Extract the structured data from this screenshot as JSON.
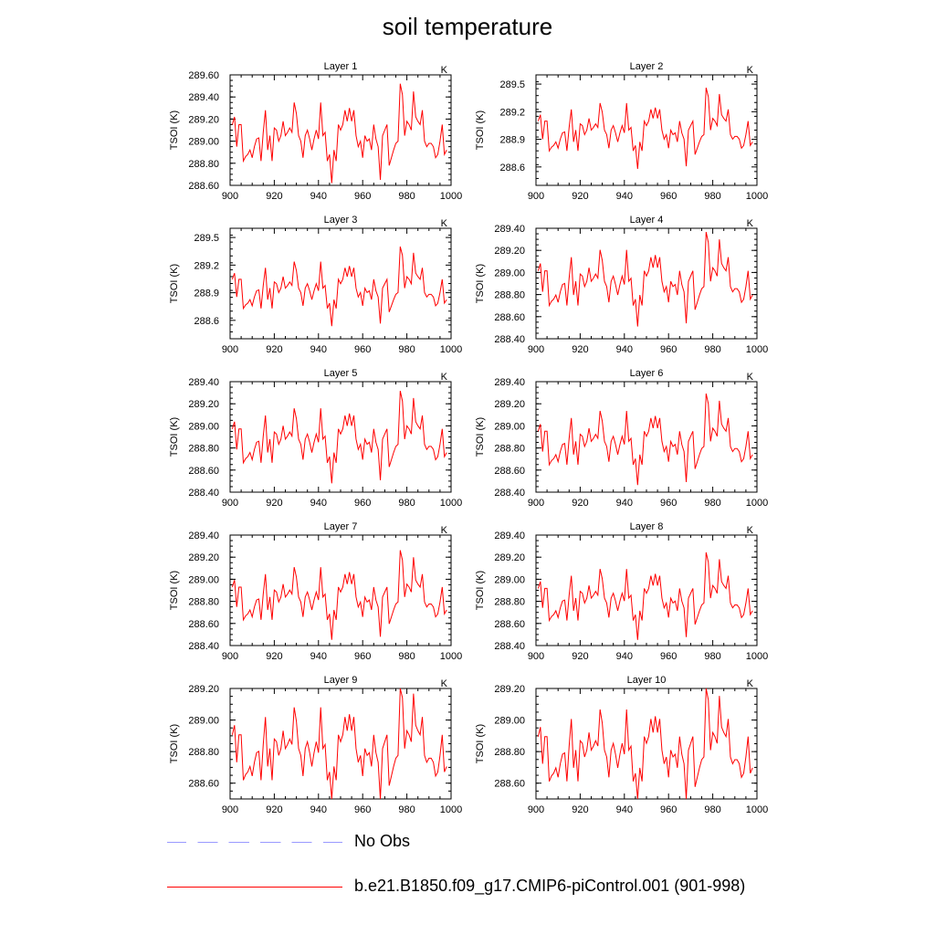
{
  "title": "soil temperature",
  "units_label": "K",
  "colors": {
    "series": "#ff0000",
    "obs": "#9999ff",
    "axis": "#000000"
  },
  "legend": [
    {
      "label": "No Obs",
      "style": "dashed",
      "color": "#9999ff"
    },
    {
      "label": "b.e21.B1850.f09_g17.CMIP6-piControl.001 (901-998)",
      "style": "solid",
      "color": "#ff0000"
    }
  ],
  "chart_data": [
    {
      "type": "line",
      "title": "Layer 1",
      "units": "K",
      "ylabel": "TSOI  (K)",
      "xlim": [
        900,
        1000
      ],
      "x_ticks": [
        "900",
        "920",
        "940",
        "960",
        "980",
        "1000"
      ],
      "ylim": [
        288.6,
        289.6
      ],
      "y_ticks": [
        288.6,
        288.8,
        289.0,
        289.2,
        289.4,
        289.6
      ],
      "y_tick_labels": [
        "288.60",
        "288.80",
        "289.00",
        "289.20",
        "289.40",
        "289.60"
      ],
      "offset": 0.1,
      "scale": 1.0
    },
    {
      "type": "line",
      "title": "Layer 2",
      "units": "K",
      "ylabel": "TSOI  (K)",
      "xlim": [
        900,
        1000
      ],
      "x_ticks": [
        "900",
        "920",
        "940",
        "960",
        "980",
        "1000"
      ],
      "ylim": [
        288.4,
        289.6
      ],
      "y_ticks": [
        288.6,
        288.9,
        289.2,
        289.5
      ],
      "y_tick_labels": [
        "288.6",
        "288.9",
        "289.2",
        "289.5"
      ],
      "offset": 0.05,
      "scale": 0.98
    },
    {
      "type": "line",
      "title": "Layer 3",
      "units": "K",
      "ylabel": "TSOI  (K)",
      "xlim": [
        900,
        1000
      ],
      "x_ticks": [
        "900",
        "920",
        "940",
        "960",
        "980",
        "1000"
      ],
      "ylim": [
        288.4,
        289.6
      ],
      "y_ticks": [
        288.6,
        288.9,
        289.2,
        289.5
      ],
      "y_tick_labels": [
        "288.6",
        "288.9",
        "289.2",
        "289.5"
      ],
      "offset": 0.0,
      "scale": 0.96
    },
    {
      "type": "line",
      "title": "Layer 4",
      "units": "K",
      "ylabel": "TSOI  (K)",
      "xlim": [
        900,
        1000
      ],
      "x_ticks": [
        "900",
        "920",
        "940",
        "960",
        "980",
        "1000"
      ],
      "ylim": [
        288.4,
        289.4
      ],
      "y_ticks": [
        288.4,
        288.6,
        288.8,
        289.0,
        289.2,
        289.4
      ],
      "y_tick_labels": [
        "288.40",
        "288.60",
        "288.80",
        "289.00",
        "289.20",
        "289.40"
      ],
      "offset": -0.03,
      "scale": 0.95
    },
    {
      "type": "line",
      "title": "Layer 5",
      "units": "K",
      "ylabel": "TSOI  (K)",
      "xlim": [
        900,
        1000
      ],
      "x_ticks": [
        "900",
        "920",
        "940",
        "960",
        "980",
        "1000"
      ],
      "ylim": [
        288.4,
        289.4
      ],
      "y_ticks": [
        288.4,
        288.6,
        288.8,
        289.0,
        289.2,
        289.4
      ],
      "y_tick_labels": [
        "288.40",
        "288.60",
        "288.80",
        "289.00",
        "289.20",
        "289.40"
      ],
      "offset": -0.07,
      "scale": 0.93
    },
    {
      "type": "line",
      "title": "Layer 6",
      "units": "K",
      "ylabel": "TSOI  (K)",
      "xlim": [
        900,
        1000
      ],
      "x_ticks": [
        "900",
        "920",
        "940",
        "960",
        "980",
        "1000"
      ],
      "ylim": [
        288.4,
        289.4
      ],
      "y_ticks": [
        288.4,
        288.6,
        288.8,
        289.0,
        289.2,
        289.4
      ],
      "y_tick_labels": [
        "288.40",
        "288.60",
        "288.80",
        "289.00",
        "289.20",
        "289.40"
      ],
      "offset": -0.09,
      "scale": 0.92
    },
    {
      "type": "line",
      "title": "Layer 7",
      "units": "K",
      "ylabel": "TSOI  (K)",
      "xlim": [
        900,
        1000
      ],
      "x_ticks": [
        "900",
        "920",
        "940",
        "960",
        "980",
        "1000"
      ],
      "ylim": [
        288.4,
        289.4
      ],
      "y_ticks": [
        288.4,
        288.6,
        288.8,
        289.0,
        289.2,
        289.4
      ],
      "y_tick_labels": [
        "288.40",
        "288.60",
        "288.80",
        "289.00",
        "289.20",
        "289.40"
      ],
      "offset": -0.11,
      "scale": 0.9
    },
    {
      "type": "line",
      "title": "Layer 8",
      "units": "K",
      "ylabel": "TSOI  (K)",
      "xlim": [
        900,
        1000
      ],
      "x_ticks": [
        "900",
        "920",
        "940",
        "960",
        "980",
        "1000"
      ],
      "ylim": [
        288.4,
        289.4
      ],
      "y_ticks": [
        288.4,
        288.6,
        288.8,
        289.0,
        289.2,
        289.4
      ],
      "y_tick_labels": [
        "288.40",
        "288.60",
        "288.80",
        "289.00",
        "289.20",
        "289.40"
      ],
      "offset": -0.12,
      "scale": 0.88
    },
    {
      "type": "line",
      "title": "Layer 9",
      "units": "K",
      "ylabel": "TSOI  (K)",
      "xlim": [
        900,
        1000
      ],
      "x_ticks": [
        "900",
        "920",
        "940",
        "960",
        "980",
        "1000"
      ],
      "ylim": [
        288.5,
        289.2
      ],
      "y_ticks": [
        288.6,
        288.8,
        289.0,
        289.2
      ],
      "y_tick_labels": [
        "288.60",
        "288.80",
        "289.00",
        "289.20"
      ],
      "offset": -0.13,
      "scale": 0.87
    },
    {
      "type": "line",
      "title": "Layer 10",
      "units": "K",
      "ylabel": "TSOI  (K)",
      "xlim": [
        900,
        1000
      ],
      "x_ticks": [
        "900",
        "920",
        "940",
        "960",
        "980",
        "1000"
      ],
      "ylim": [
        288.5,
        289.2
      ],
      "y_ticks": [
        288.6,
        288.8,
        289.0,
        289.2
      ],
      "y_tick_labels": [
        "288.60",
        "288.80",
        "289.00",
        "289.20"
      ],
      "offset": -0.14,
      "scale": 0.86
    }
  ],
  "series_years": [
    901,
    902,
    903,
    904,
    905,
    906,
    907,
    908,
    909,
    910,
    911,
    912,
    913,
    914,
    915,
    916,
    917,
    918,
    919,
    920,
    921,
    922,
    923,
    924,
    925,
    926,
    927,
    928,
    929,
    930,
    931,
    932,
    933,
    934,
    935,
    936,
    937,
    938,
    939,
    940,
    941,
    942,
    943,
    944,
    945,
    946,
    947,
    948,
    949,
    950,
    951,
    952,
    953,
    954,
    955,
    956,
    957,
    958,
    959,
    960,
    961,
    962,
    963,
    964,
    965,
    966,
    967,
    968,
    969,
    970,
    971,
    972,
    973,
    974,
    975,
    976,
    977,
    978,
    979,
    980,
    981,
    982,
    983,
    984,
    985,
    986,
    987,
    988,
    989,
    990,
    991,
    992,
    993,
    994,
    995,
    996,
    997,
    998
  ],
  "series_base": [
    289.15,
    289.22,
    288.95,
    289.15,
    289.15,
    288.82,
    288.86,
    288.88,
    288.92,
    288.85,
    288.95,
    289.02,
    289.03,
    288.82,
    289.08,
    289.28,
    288.92,
    289.05,
    288.82,
    289.12,
    289.1,
    289.0,
    289.05,
    289.18,
    289.05,
    289.08,
    289.12,
    289.08,
    289.35,
    289.25,
    289.05,
    289.0,
    288.85,
    289.05,
    289.1,
    289.02,
    288.92,
    289.02,
    289.1,
    289.02,
    289.35,
    289.05,
    289.08,
    288.82,
    288.88,
    288.62,
    288.92,
    288.82,
    289.15,
    289.1,
    289.15,
    289.28,
    289.18,
    289.3,
    289.18,
    289.28,
    289.05,
    288.95,
    289.0,
    288.85,
    289.05,
    289.0,
    289.02,
    288.92,
    289.15,
    289.02,
    288.95,
    288.65,
    289.05,
    289.1,
    289.15,
    288.78,
    288.85,
    288.92,
    288.98,
    289.0,
    289.52,
    289.42,
    289.05,
    289.18,
    289.15,
    289.1,
    289.45,
    289.22,
    289.18,
    289.15,
    289.28,
    289.0,
    288.95,
    288.98,
    288.98,
    288.95,
    288.85,
    288.88,
    289.0,
    289.15,
    288.88,
    288.92
  ]
}
